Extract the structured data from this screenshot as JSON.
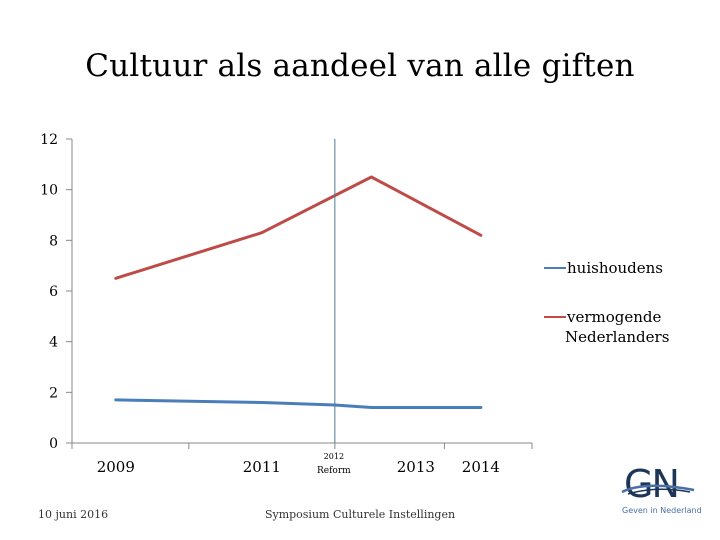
{
  "slide": {
    "title": "Cultuur als aandeel van alle giften",
    "footer_date": "10 juni 2016",
    "footer_center": "Symposium Culturele Instellingen",
    "logo": {
      "letters": "GN",
      "subtitle": "Geven in Nederland",
      "color": "#1d3557",
      "accent": "#4a6fa5"
    }
  },
  "chart_data": {
    "type": "line",
    "title": "",
    "xlabel": "",
    "ylabel": "",
    "x": [
      2009,
      2011,
      2013,
      2014
    ],
    "x_tick_labels": [
      "2009",
      "2011",
      "2013",
      "2014"
    ],
    "xlim": [
      2008.4,
      2014.7
    ],
    "ylim": [
      0,
      12
    ],
    "y_ticks": [
      0,
      2,
      4,
      6,
      8,
      10,
      12
    ],
    "grid": false,
    "legend": "right",
    "annotation": {
      "x": 2012,
      "line1": "2012",
      "line2": "Reform"
    },
    "series": [
      {
        "name": "huishoudens",
        "color": "#4a7ebb",
        "points": [
          [
            2009,
            1.7
          ],
          [
            2011,
            1.6
          ],
          [
            2012,
            1.5
          ],
          [
            2012.5,
            1.4
          ],
          [
            2014,
            1.4
          ]
        ]
      },
      {
        "name": "vermogende Nederlanders",
        "color": "#be4b48",
        "points": [
          [
            2009,
            6.5
          ],
          [
            2011,
            8.3
          ],
          [
            2012.5,
            10.5
          ],
          [
            2014,
            8.2
          ]
        ]
      }
    ]
  }
}
